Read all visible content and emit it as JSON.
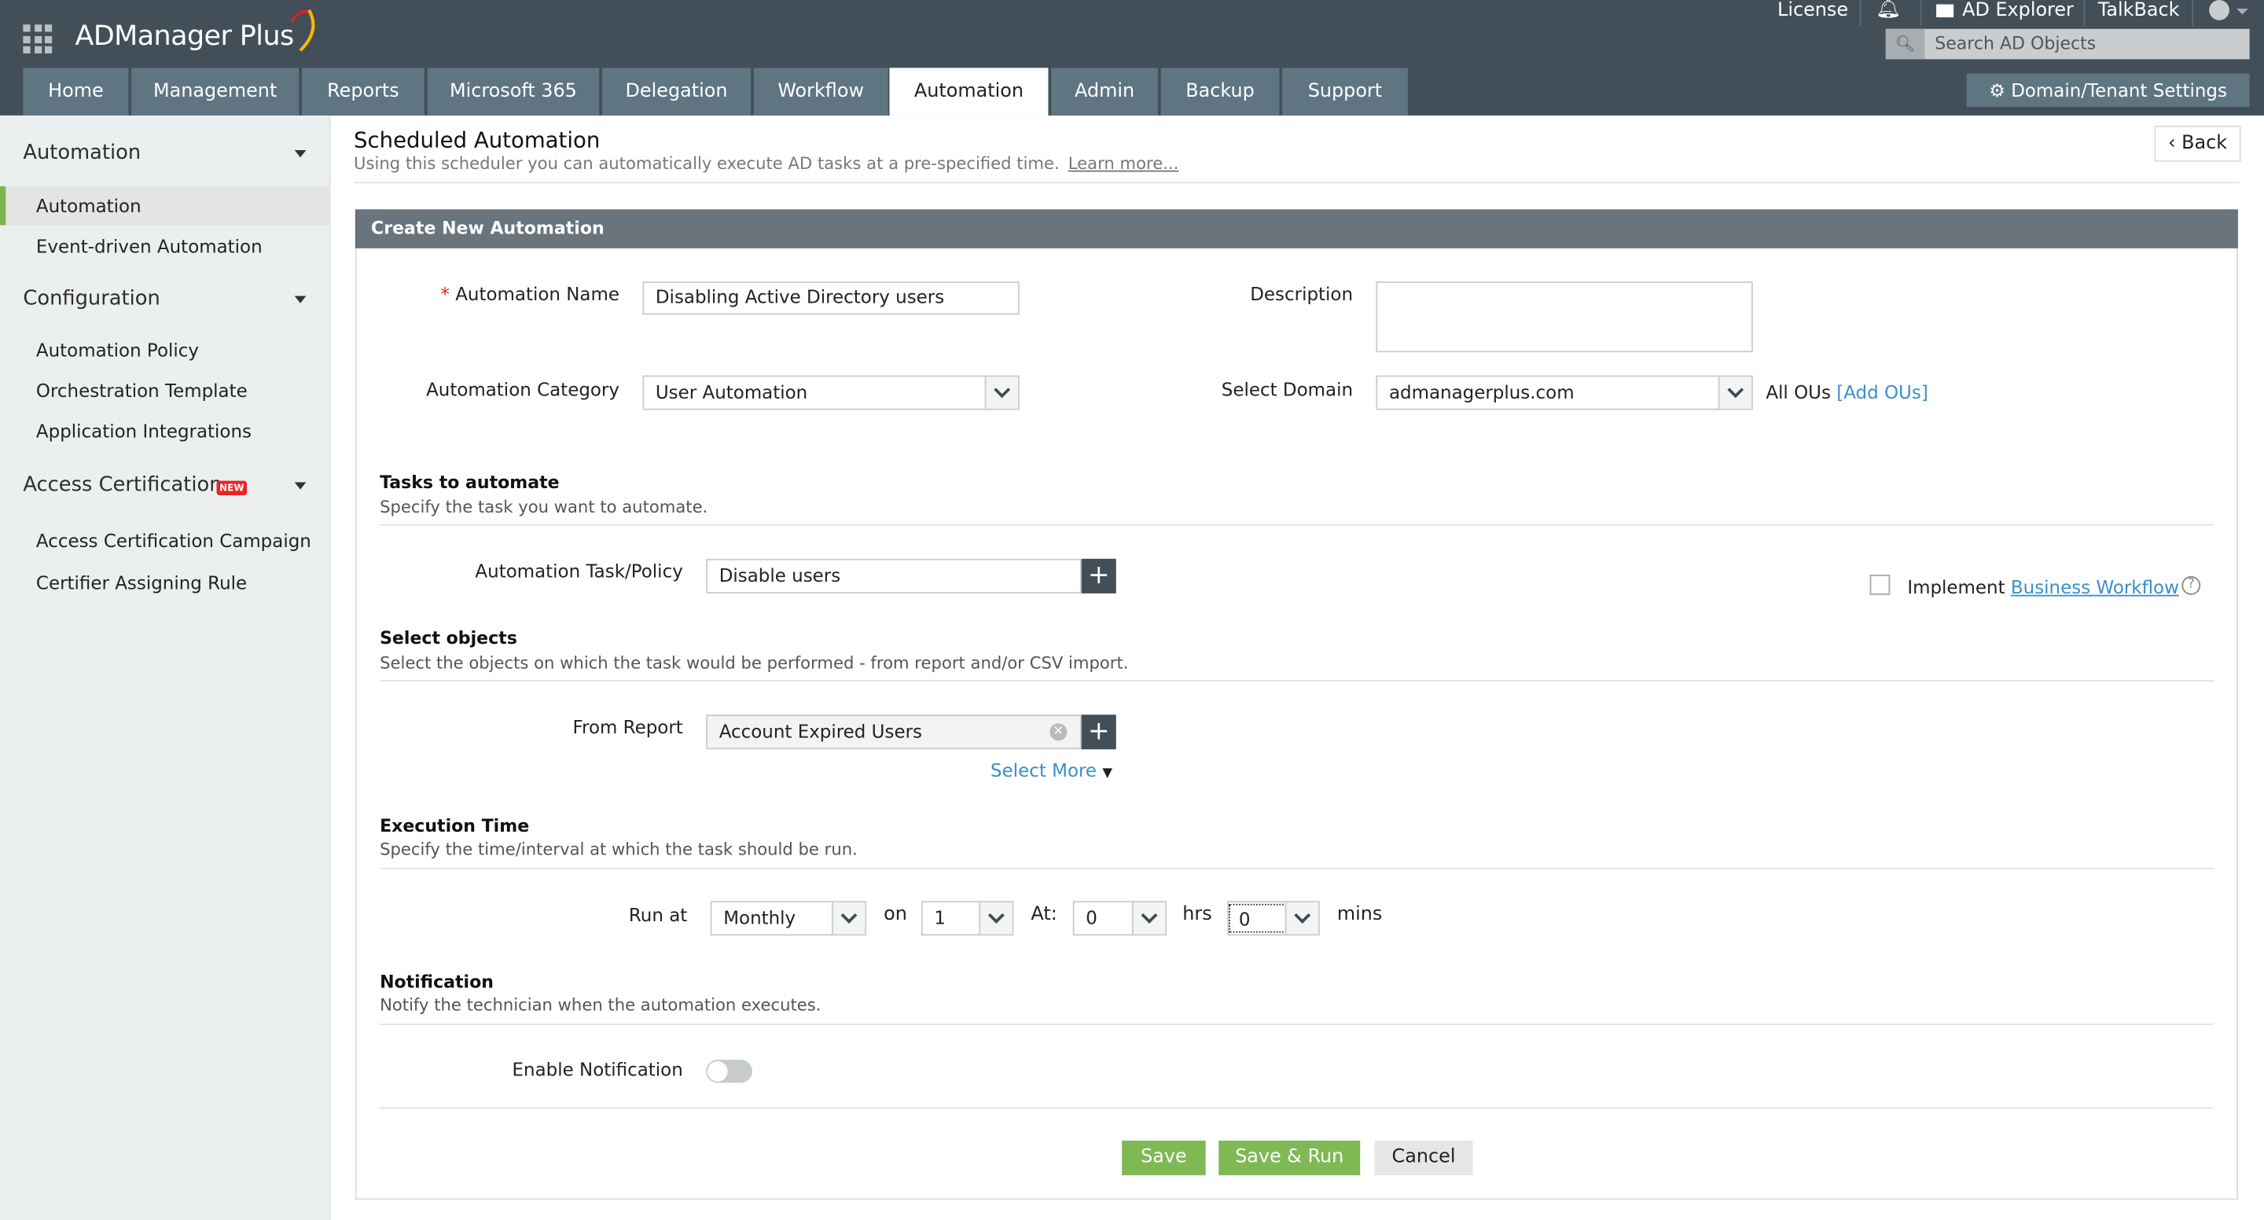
{
  "app": {
    "name": "ADManager Plus"
  },
  "topbar": {
    "license": "License",
    "ad_explorer": "AD Explorer",
    "talkback": "TalkBack",
    "search_placeholder": "Search AD Objects",
    "domain_settings": "Domain/Tenant Settings"
  },
  "tabs": [
    {
      "label": "Home"
    },
    {
      "label": "Management"
    },
    {
      "label": "Reports"
    },
    {
      "label": "Microsoft 365"
    },
    {
      "label": "Delegation"
    },
    {
      "label": "Workflow"
    },
    {
      "label": "Automation",
      "active": true
    },
    {
      "label": "Admin"
    },
    {
      "label": "Backup"
    },
    {
      "label": "Support"
    }
  ],
  "sidebar": {
    "sections": [
      {
        "title": "Automation",
        "items": [
          "Automation",
          "Event-driven Automation"
        ]
      },
      {
        "title": "Configuration",
        "items": [
          "Automation Policy",
          "Orchestration Template",
          "Application Integrations"
        ]
      },
      {
        "title": "Access Certification",
        "badge": "NEW",
        "items": [
          "Access Certification Campaign",
          "Certifier Assigning Rule"
        ]
      }
    ],
    "active_item": "Automation"
  },
  "page": {
    "title": "Scheduled Automation",
    "subtitle": "Using this scheduler you can automatically execute AD tasks at a pre-specified time.",
    "learn_more": "Learn more...",
    "back": "Back"
  },
  "form": {
    "header": "Create New Automation",
    "name_label": "Automation Name",
    "required_mark": "*",
    "name_value": "Disabling Active Directory users",
    "description_label": "Description",
    "description_value": "",
    "category_label": "Automation Category",
    "category_value": "User Automation",
    "domain_label": "Select Domain",
    "domain_value": "admanagerplus.com",
    "all_ous": "All OUs",
    "add_ous": "[Add OUs]",
    "tasks": {
      "title": "Tasks to automate",
      "subtitle": "Specify the task you want to automate.",
      "label": "Automation Task/Policy",
      "value": "Disable users",
      "implement": "Implement",
      "business_workflow": "Business Workflow",
      "implement_checked": false
    },
    "objects": {
      "title": "Select objects",
      "subtitle": "Select the objects on which the task would be performed - from report and/or CSV import.",
      "label": "From Report",
      "value": "Account Expired Users",
      "select_more": "Select More"
    },
    "execution": {
      "title": "Execution Time",
      "subtitle": "Specify the time/interval at which the task should be run.",
      "run_at": "Run at",
      "frequency": "Monthly",
      "on": "on",
      "day": "1",
      "at": "At:",
      "hours": "0",
      "hrs": "hrs",
      "minutes": "0",
      "mins": "mins"
    },
    "notification": {
      "title": "Notification",
      "subtitle": "Notify the technician when the automation executes.",
      "label": "Enable Notification",
      "enabled": false
    },
    "buttons": {
      "save": "Save",
      "save_run": "Save & Run",
      "cancel": "Cancel"
    }
  },
  "colors": {
    "header": "#434f58",
    "tab": "#5f7582",
    "accent_green": "#7fb954",
    "link": "#3b8fc9"
  }
}
